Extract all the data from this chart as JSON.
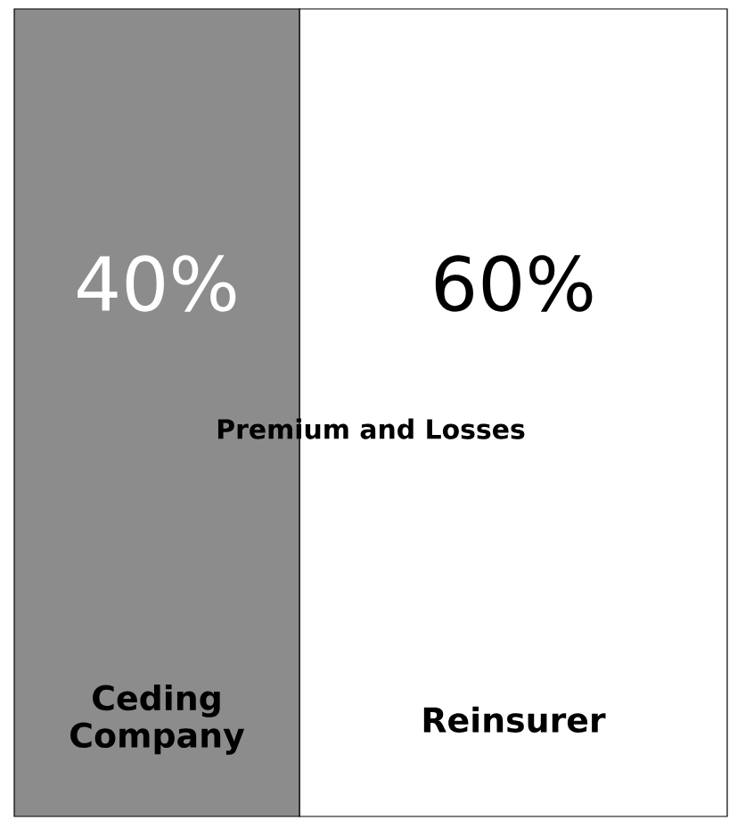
{
  "chart_data": {
    "type": "bar",
    "orientation": "horizontal",
    "stacked": true,
    "categories": [
      null
    ],
    "annotations": [
      "Premium and Losses"
    ],
    "series": [
      {
        "name": "Ceding Company",
        "color": "#8c8c8c",
        "values": [
          40
        ],
        "value_labels": [
          "40%"
        ]
      },
      {
        "name": "Reinsurer",
        "color": "#ffffff",
        "values": [
          60
        ],
        "value_labels": [
          "60%"
        ]
      }
    ]
  }
}
